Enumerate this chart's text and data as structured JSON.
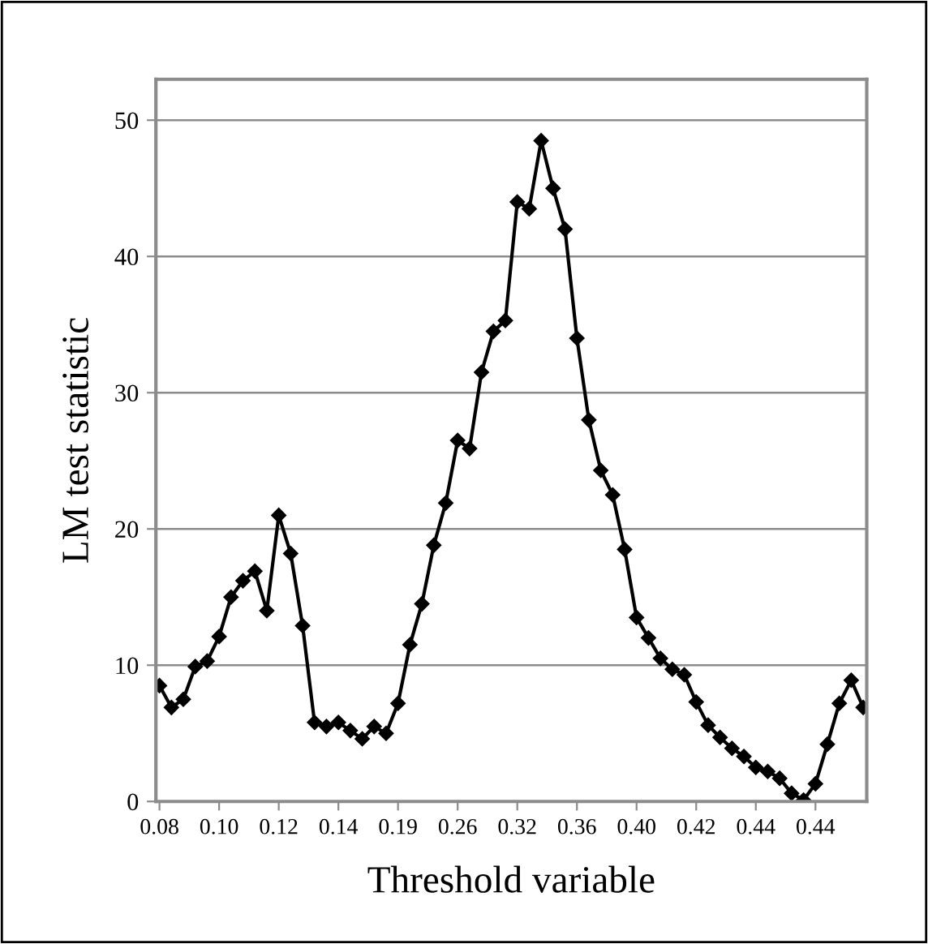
{
  "chart_data": {
    "type": "line",
    "xlabel": "Threshold variable",
    "ylabel": "LM test statistic",
    "categories": [
      "0.08",
      null,
      null,
      null,
      null,
      "0.10",
      null,
      null,
      null,
      null,
      "0.12",
      null,
      null,
      null,
      null,
      "0.14",
      null,
      null,
      null,
      null,
      "0.19",
      null,
      null,
      null,
      null,
      "0.26",
      null,
      null,
      null,
      null,
      "0.32",
      null,
      null,
      null,
      null,
      "0.36",
      null,
      null,
      null,
      null,
      "0.40",
      null,
      null,
      null,
      null,
      "0.42",
      null,
      null,
      null,
      null,
      "0.44",
      null,
      null,
      null,
      null,
      "0.44",
      null,
      null,
      null,
      null
    ],
    "series": [
      {
        "color": "#000000",
        "values": [
          8.5,
          6.9,
          7.5,
          9.9,
          10.3,
          12.1,
          15.0,
          16.2,
          16.9,
          14.0,
          21.0,
          18.2,
          12.9,
          5.8,
          5.5,
          5.8,
          5.2,
          4.6,
          5.5,
          5.0,
          7.2,
          11.5,
          14.5,
          18.8,
          21.9,
          26.5,
          25.9,
          31.5,
          34.5,
          35.3,
          44.0,
          43.5,
          48.5,
          45.0,
          42.0,
          34.0,
          28.0,
          24.3,
          22.5,
          18.5,
          13.5,
          12.0,
          10.5,
          9.7,
          9.3,
          7.3,
          5.6,
          4.7,
          3.9,
          3.3,
          2.5,
          2.2,
          1.7,
          0.6,
          0.1,
          1.3,
          4.2,
          7.2,
          8.9,
          6.9
        ]
      }
    ],
    "ylim": [
      0,
      53
    ],
    "yticks": [
      0,
      10,
      20,
      30,
      40,
      50
    ],
    "grid": "y",
    "marker": "diamond",
    "line_style": "solid"
  }
}
